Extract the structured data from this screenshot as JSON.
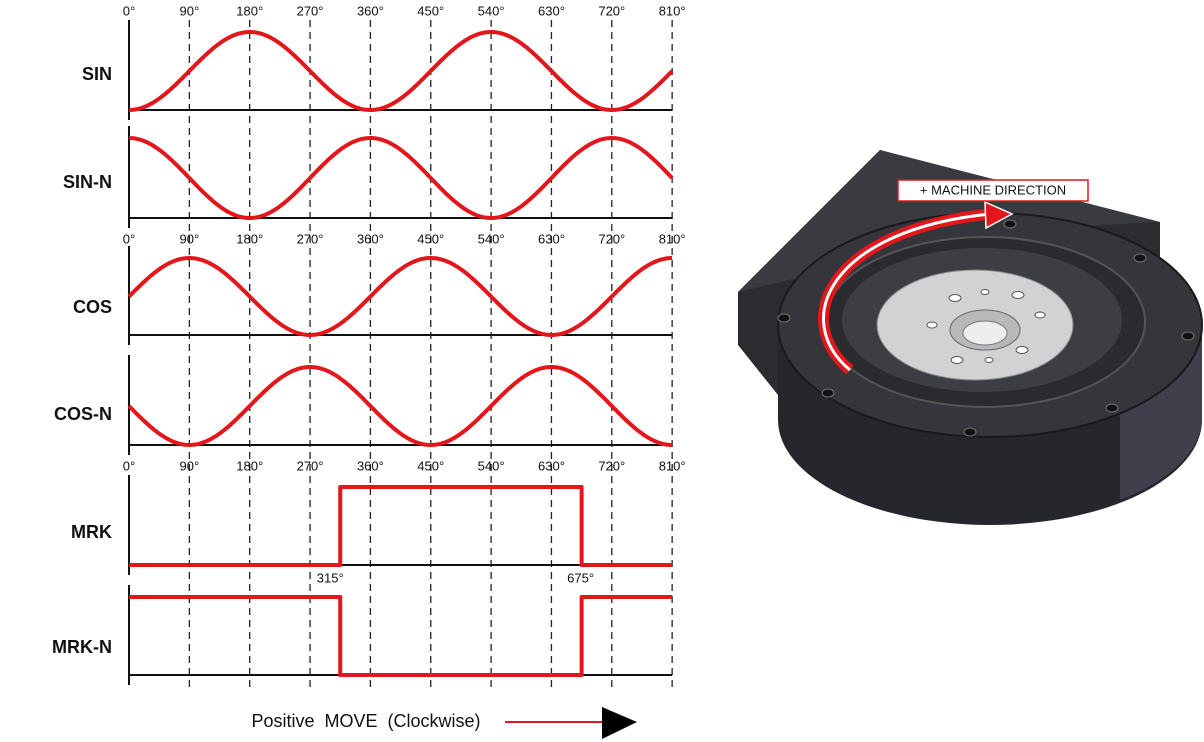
{
  "angle_labels": [
    "0°",
    "90°",
    "180°",
    "270°",
    "360°",
    "450°",
    "540°",
    "630°",
    "720°",
    "810°"
  ],
  "signals": [
    {
      "label": "SIN"
    },
    {
      "label": "SIN-N"
    },
    {
      "label": "COS"
    },
    {
      "label": "COS-N"
    },
    {
      "label": "MRK"
    },
    {
      "label": "MRK-N"
    }
  ],
  "marker_angles": [
    "315°",
    "675°"
  ],
  "footer": {
    "text": "Positive  MOVE  (Clockwise)"
  },
  "image": {
    "callout": "+ MACHINE DIRECTION"
  }
}
